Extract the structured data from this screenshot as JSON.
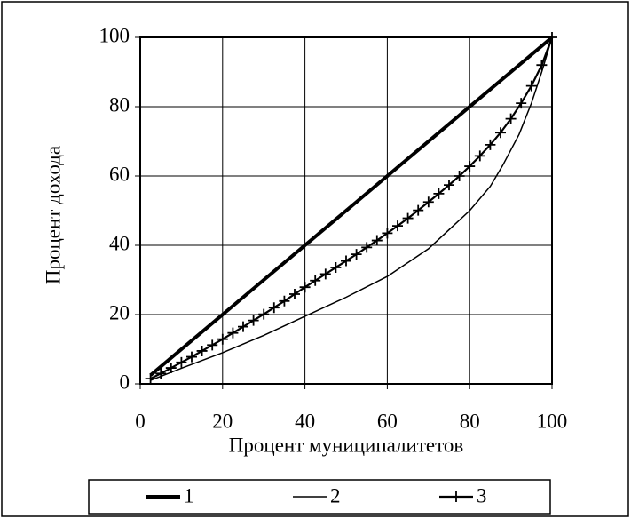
{
  "chart_data": {
    "type": "line",
    "x_label": "Процент муниципалитетов",
    "y_label": "Процент дохода",
    "xlim": [
      0,
      100
    ],
    "xticks": [
      0,
      20,
      40,
      60,
      80,
      100
    ],
    "ylim": [
      0,
      100
    ],
    "yticks": [
      0,
      20,
      40,
      60,
      80,
      100
    ],
    "grid": true,
    "legend": "bottom",
    "series": [
      {
        "name": "1",
        "color": "#000000",
        "x": [
          2.5,
          100
        ],
        "values": [
          2.5,
          100
        ]
      },
      {
        "name": "2",
        "color": "#000000",
        "x": [
          2.5,
          10,
          20,
          30,
          40,
          50,
          60,
          70,
          80,
          85,
          88,
          92,
          95,
          97.5,
          100
        ],
        "values": [
          1,
          4.5,
          9,
          14,
          19.5,
          25,
          31,
          39,
          50,
          57,
          63,
          72,
          81,
          90,
          100
        ]
      },
      {
        "name": "3",
        "color": "#000000",
        "marker": "+",
        "x": [
          2.5,
          5,
          7.5,
          10,
          12.5,
          15,
          17.5,
          20,
          22.5,
          25,
          27.5,
          30,
          32.5,
          35,
          37.5,
          40,
          42.5,
          45,
          47.5,
          50,
          52.5,
          55,
          57.5,
          60,
          62.5,
          65,
          67.5,
          70,
          72.5,
          75,
          77.5,
          80,
          82.5,
          85,
          87.5,
          90,
          92.5,
          95,
          97.5,
          100
        ],
        "values": [
          1.5,
          3,
          4.6,
          6.2,
          7.8,
          9.5,
          11.2,
          12.9,
          14.7,
          16.5,
          18.3,
          20.1,
          22,
          23.9,
          25.9,
          27.9,
          29.8,
          31.7,
          33.6,
          35.5,
          37.4,
          39.4,
          41.4,
          43.5,
          45.6,
          47.8,
          50.1,
          52.5,
          54.9,
          57.4,
          60,
          62.8,
          65.8,
          69,
          72.5,
          76.5,
          81,
          86,
          92,
          100
        ]
      }
    ]
  }
}
